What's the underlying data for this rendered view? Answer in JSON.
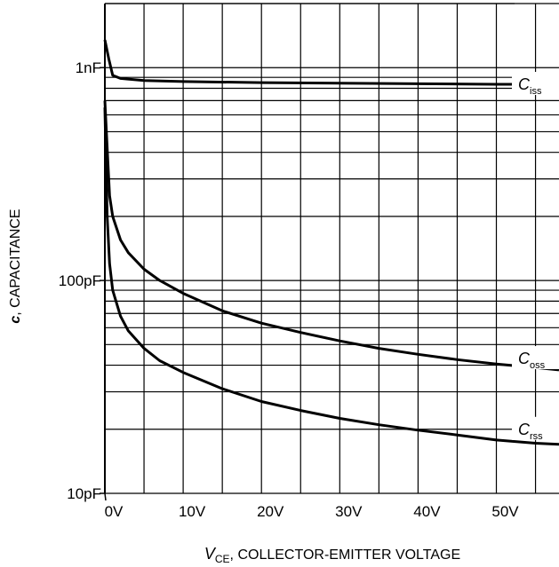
{
  "chart_data": {
    "type": "line",
    "y_scale": "log",
    "x_range": [
      0,
      58
    ],
    "y_range": [
      10,
      2000
    ],
    "grid": true,
    "x_ticks": [
      {
        "value": 0,
        "label": "0V"
      },
      {
        "value": 10,
        "label": "10V"
      },
      {
        "value": 20,
        "label": "20V"
      },
      {
        "value": 30,
        "label": "30V"
      },
      {
        "value": 40,
        "label": "40V"
      },
      {
        "value": 50,
        "label": "50V"
      }
    ],
    "y_ticks": [
      {
        "value": 10,
        "label": "10pF"
      },
      {
        "value": 100,
        "label": "100pF"
      },
      {
        "value": 1000,
        "label": "1nF"
      }
    ],
    "xlabel": {
      "symbol": "V",
      "subscript": "CE",
      "text": ", COLLECTOR-EMITTER VOLTAGE"
    },
    "ylabel": {
      "symbol": "c",
      "text": ", CAPACITANCE"
    },
    "series": [
      {
        "name": "C_iss",
        "label": {
          "symbol": "C",
          "subscript": "iss"
        },
        "x": [
          0,
          0.5,
          1,
          2,
          5,
          10,
          20,
          30,
          40,
          50,
          58
        ],
        "y": [
          1350,
          1100,
          920,
          890,
          870,
          860,
          850,
          845,
          840,
          835,
          835
        ]
      },
      {
        "name": "C_oss",
        "label": {
          "symbol": "C",
          "subscript": "oss"
        },
        "x": [
          0,
          0.3,
          0.6,
          1,
          2,
          3,
          5,
          7,
          10,
          15,
          20,
          25,
          30,
          35,
          40,
          45,
          50,
          55,
          58
        ],
        "y": [
          700,
          420,
          250,
          200,
          155,
          135,
          113,
          100,
          87,
          72,
          63,
          57,
          52,
          48,
          45,
          42.5,
          40.5,
          39,
          38
        ]
      },
      {
        "name": "C_rss",
        "label": {
          "symbol": "C",
          "subscript": "rss"
        },
        "x": [
          0,
          0.3,
          0.6,
          1,
          2,
          3,
          5,
          7,
          10,
          15,
          20,
          25,
          30,
          35,
          40,
          45,
          50,
          55,
          58
        ],
        "y": [
          650,
          200,
          120,
          90,
          68,
          58,
          48,
          42,
          37,
          31,
          27,
          24.5,
          22.5,
          21,
          19.8,
          18.8,
          17.8,
          17.2,
          17
        ]
      }
    ]
  }
}
